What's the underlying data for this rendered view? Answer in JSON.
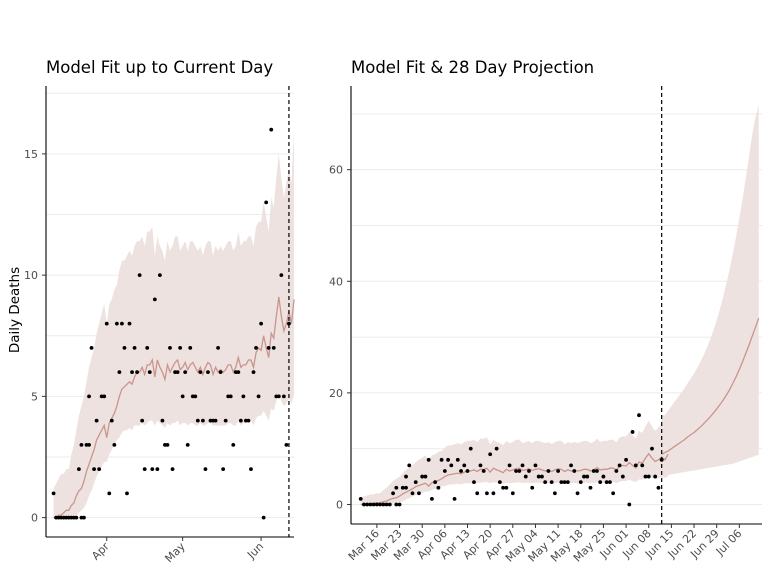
{
  "chart_data": [
    {
      "type": "line",
      "title": "Model Fit up to Current Day",
      "xlabel": "",
      "ylabel": "Daily Deaths",
      "x_tick_labels": [
        "Apr",
        "May",
        "Jun"
      ],
      "y_ticks": [
        0,
        5,
        10,
        15
      ],
      "xlim": [
        "2020-03-08",
        "2020-06-14"
      ],
      "ylim": [
        -0.8,
        17.8
      ],
      "current_day": "2020-06-12",
      "grid": "horizontal",
      "colors": {
        "points": "#000000",
        "band": "#ede2e0",
        "line": "#c9958c",
        "vline": "#000000"
      },
      "observed": [
        {
          "x": "2020-03-11",
          "y": 1
        },
        {
          "x": "2020-03-12",
          "y": 0
        },
        {
          "x": "2020-03-13",
          "y": 0
        },
        {
          "x": "2020-03-14",
          "y": 0
        },
        {
          "x": "2020-03-15",
          "y": 0
        },
        {
          "x": "2020-03-16",
          "y": 0
        },
        {
          "x": "2020-03-17",
          "y": 0
        },
        {
          "x": "2020-03-18",
          "y": 0
        },
        {
          "x": "2020-03-19",
          "y": 0
        },
        {
          "x": "2020-03-20",
          "y": 0
        },
        {
          "x": "2020-03-21",
          "y": 2
        },
        {
          "x": "2020-03-22",
          "y": 3
        },
        {
          "x": "2020-03-22",
          "y": 0
        },
        {
          "x": "2020-03-23",
          "y": 0
        },
        {
          "x": "2020-03-24",
          "y": 3
        },
        {
          "x": "2020-03-25",
          "y": 5
        },
        {
          "x": "2020-03-25",
          "y": 3
        },
        {
          "x": "2020-03-26",
          "y": 7
        },
        {
          "x": "2020-03-27",
          "y": 2
        },
        {
          "x": "2020-03-28",
          "y": 4
        },
        {
          "x": "2020-03-29",
          "y": 2
        },
        {
          "x": "2020-03-30",
          "y": 5
        },
        {
          "x": "2020-03-31",
          "y": 5
        },
        {
          "x": "2020-04-01",
          "y": 8
        },
        {
          "x": "2020-04-02",
          "y": 1
        },
        {
          "x": "2020-04-03",
          "y": 4
        },
        {
          "x": "2020-04-04",
          "y": 3
        },
        {
          "x": "2020-04-05",
          "y": 8
        },
        {
          "x": "2020-04-06",
          "y": 6
        },
        {
          "x": "2020-04-07",
          "y": 8
        },
        {
          "x": "2020-04-08",
          "y": 7
        },
        {
          "x": "2020-04-09",
          "y": 1
        },
        {
          "x": "2020-04-10",
          "y": 8
        },
        {
          "x": "2020-04-11",
          "y": 6
        },
        {
          "x": "2020-04-12",
          "y": 7
        },
        {
          "x": "2020-04-13",
          "y": 6
        },
        {
          "x": "2020-04-14",
          "y": 10
        },
        {
          "x": "2020-04-15",
          "y": 4
        },
        {
          "x": "2020-04-16",
          "y": 2
        },
        {
          "x": "2020-04-17",
          "y": 7
        },
        {
          "x": "2020-04-18",
          "y": 6
        },
        {
          "x": "2020-04-19",
          "y": 2
        },
        {
          "x": "2020-04-20",
          "y": 9
        },
        {
          "x": "2020-04-21",
          "y": 2
        },
        {
          "x": "2020-04-22",
          "y": 10
        },
        {
          "x": "2020-04-23",
          "y": 4
        },
        {
          "x": "2020-04-24",
          "y": 3
        },
        {
          "x": "2020-04-25",
          "y": 3
        },
        {
          "x": "2020-04-26",
          "y": 7
        },
        {
          "x": "2020-04-27",
          "y": 2
        },
        {
          "x": "2020-04-28",
          "y": 6
        },
        {
          "x": "2020-04-29",
          "y": 6
        },
        {
          "x": "2020-04-30",
          "y": 7
        },
        {
          "x": "2020-05-01",
          "y": 5
        },
        {
          "x": "2020-05-02",
          "y": 6
        },
        {
          "x": "2020-05-03",
          "y": 3
        },
        {
          "x": "2020-05-04",
          "y": 7
        },
        {
          "x": "2020-05-05",
          "y": 5
        },
        {
          "x": "2020-05-06",
          "y": 5
        },
        {
          "x": "2020-05-07",
          "y": 4
        },
        {
          "x": "2020-05-08",
          "y": 6
        },
        {
          "x": "2020-05-09",
          "y": 4
        },
        {
          "x": "2020-05-10",
          "y": 2
        },
        {
          "x": "2020-05-11",
          "y": 6
        },
        {
          "x": "2020-05-12",
          "y": 4
        },
        {
          "x": "2020-05-13",
          "y": 4
        },
        {
          "x": "2020-05-14",
          "y": 4
        },
        {
          "x": "2020-05-15",
          "y": 7
        },
        {
          "x": "2020-05-16",
          "y": 6
        },
        {
          "x": "2020-05-17",
          "y": 2
        },
        {
          "x": "2020-05-18",
          "y": 4
        },
        {
          "x": "2020-05-19",
          "y": 5
        },
        {
          "x": "2020-05-20",
          "y": 5
        },
        {
          "x": "2020-05-21",
          "y": 3
        },
        {
          "x": "2020-05-22",
          "y": 6
        },
        {
          "x": "2020-05-23",
          "y": 6
        },
        {
          "x": "2020-05-24",
          "y": 4
        },
        {
          "x": "2020-05-25",
          "y": 5
        },
        {
          "x": "2020-05-26",
          "y": 4
        },
        {
          "x": "2020-05-27",
          "y": 4
        },
        {
          "x": "2020-05-28",
          "y": 2
        },
        {
          "x": "2020-05-29",
          "y": 6
        },
        {
          "x": "2020-05-30",
          "y": 7
        },
        {
          "x": "2020-05-31",
          "y": 5
        },
        {
          "x": "2020-06-01",
          "y": 8
        },
        {
          "x": "2020-06-02",
          "y": 0
        },
        {
          "x": "2020-06-03",
          "y": 13
        },
        {
          "x": "2020-06-04",
          "y": 7
        },
        {
          "x": "2020-06-05",
          "y": 16
        },
        {
          "x": "2020-06-06",
          "y": 7
        },
        {
          "x": "2020-06-07",
          "y": 5
        },
        {
          "x": "2020-06-08",
          "y": 5
        },
        {
          "x": "2020-06-09",
          "y": 10
        },
        {
          "x": "2020-06-10",
          "y": 5
        },
        {
          "x": "2020-06-11",
          "y": 3
        },
        {
          "x": "2020-06-12",
          "y": 8
        }
      ],
      "fit": {
        "start": "2020-03-11",
        "median": [
          0,
          0,
          0.1,
          0.1,
          0.2,
          0.3,
          0.3,
          0.5,
          0.6,
          0.9,
          1.1,
          1.2,
          1.5,
          1.9,
          2.2,
          2.5,
          2.8,
          3.2,
          3.4,
          3.6,
          3.8,
          3.3,
          3.9,
          4.1,
          4.3,
          4.6,
          5.0,
          5.3,
          5.4,
          5.5,
          5.6,
          5.5,
          5.8,
          6.0,
          6.0,
          6.2,
          5.9,
          6.3,
          6.3,
          6.5,
          5.8,
          6.5,
          6.2,
          6.0,
          5.7,
          6.3,
          6.0,
          6.2,
          6.4,
          6.5,
          6.1,
          6.2,
          6.4,
          6.1,
          6.3,
          6.4,
          6.2,
          6.0,
          6.2,
          5.9,
          6.2,
          6.4,
          6.3,
          5.9,
          6.2,
          6.0,
          6.1,
          6.0,
          6.1,
          6.3,
          6.3,
          6.0,
          6.2,
          6.6,
          6.2,
          6.3,
          6.3,
          6.5,
          6.5,
          6.2,
          6.8,
          7.0,
          6.9,
          7.5,
          7.0,
          6.6,
          7.6,
          7.4,
          8.3,
          9.1,
          8.3,
          7.7,
          8.0,
          8.5,
          8.0,
          9.0
        ],
        "lower": [
          0,
          0,
          0,
          0,
          0,
          0,
          0,
          0,
          0,
          0.1,
          0.2,
          0.3,
          0.4,
          0.6,
          0.9,
          1.1,
          1.4,
          1.7,
          1.9,
          2.1,
          2.3,
          2.3,
          2.6,
          2.8,
          3.0,
          3.2,
          3.3,
          3.5,
          3.6,
          3.6,
          3.7,
          3.6,
          3.8,
          3.8,
          3.8,
          3.9,
          3.8,
          3.9,
          4.0,
          4.0,
          3.8,
          4.0,
          3.9,
          3.8,
          3.7,
          3.9,
          3.8,
          3.9,
          3.9,
          4.0,
          3.8,
          3.9,
          3.9,
          3.8,
          3.9,
          3.9,
          3.8,
          3.8,
          3.9,
          3.8,
          3.8,
          3.9,
          3.9,
          3.8,
          3.8,
          3.8,
          3.8,
          3.8,
          3.8,
          3.9,
          3.9,
          3.8,
          3.8,
          4.0,
          3.8,
          3.9,
          3.9,
          4.0,
          4.0,
          3.8,
          4.1,
          4.2,
          4.2,
          4.4,
          4.2,
          4.0,
          4.5,
          4.4,
          4.8,
          5.1,
          4.8,
          4.6,
          4.7,
          4.9,
          4.7,
          5.1
        ],
        "upper": [
          1.2,
          1.4,
          1.6,
          1.8,
          1.8,
          2.0,
          2.0,
          2.6,
          3.0,
          3.6,
          4.2,
          4.6,
          5.0,
          5.6,
          6.2,
          6.6,
          7.0,
          7.6,
          8.0,
          8.4,
          8.8,
          8.0,
          8.8,
          9.0,
          9.4,
          9.6,
          10.2,
          10.6,
          10.6,
          10.8,
          11.0,
          10.8,
          11.2,
          11.4,
          11.4,
          11.6,
          11.2,
          11.8,
          11.8,
          12.0,
          10.8,
          11.6,
          11.2,
          11.0,
          10.6,
          11.4,
          11.0,
          11.2,
          11.6,
          11.6,
          11.0,
          11.2,
          11.4,
          11.0,
          11.4,
          11.4,
          11.2,
          11.0,
          11.2,
          10.8,
          11.2,
          11.4,
          11.4,
          10.8,
          11.2,
          11.0,
          11.2,
          11.0,
          11.2,
          11.4,
          11.4,
          11.0,
          11.2,
          11.8,
          11.2,
          11.4,
          11.4,
          11.6,
          11.6,
          11.2,
          12.0,
          12.2,
          12.2,
          13.0,
          12.4,
          11.8,
          13.2,
          12.8,
          14.0,
          15.0,
          14.0,
          13.2,
          13.8,
          14.4,
          13.8,
          16.0
        ]
      }
    },
    {
      "type": "line",
      "title": "Model Fit & 28 Day Projection",
      "xlabel": "",
      "ylabel": "",
      "x_tick_labels": [
        "Mar 16",
        "Mar 23",
        "Mar 30",
        "Apr 06",
        "Apr 13",
        "Apr 20",
        "Apr 27",
        "May 04",
        "May 11",
        "May 18",
        "May 25",
        "Jun 01",
        "Jun 08",
        "Jun 15",
        "Jun 22",
        "Jun 29",
        "Jul 06"
      ],
      "y_ticks": [
        0,
        20,
        40,
        60
      ],
      "xlim": [
        "2020-03-08",
        "2020-07-13"
      ],
      "ylim": [
        -3.5,
        75
      ],
      "current_day": "2020-06-12",
      "grid": "horizontal",
      "projection": {
        "start": "2020-06-13",
        "median": [
          9.3,
          9.6,
          10.0,
          10.4,
          10.8,
          11.2,
          11.6,
          12.1,
          12.5,
          12.9,
          13.4,
          13.9,
          14.5,
          15.1,
          15.7,
          16.4,
          17.1,
          17.9,
          18.7,
          19.6,
          20.6,
          21.7,
          22.9,
          24.2,
          25.6,
          27.1,
          28.6,
          30.2,
          31.8,
          33.4
        ],
        "lower": [
          5.1,
          5.3,
          5.4,
          5.5,
          5.6,
          5.7,
          5.8,
          5.9,
          6.0,
          6.1,
          6.2,
          6.3,
          6.4,
          6.5,
          6.6,
          6.7,
          6.8,
          6.9,
          7.0,
          7.1,
          7.2,
          7.3,
          7.5,
          7.7,
          7.9,
          8.1,
          8.3,
          8.5,
          8.7,
          8.9
        ],
        "upper": [
          16.0,
          16.8,
          17.6,
          18.4,
          19.2,
          20.0,
          20.8,
          21.7,
          22.6,
          23.5,
          24.5,
          25.6,
          26.8,
          28.1,
          29.6,
          31.2,
          33.0,
          35.0,
          37.2,
          39.6,
          42.2,
          45.0,
          48.0,
          51.3,
          54.8,
          58.5,
          62.4,
          66.3,
          69.5,
          71.5
        ]
      }
    }
  ]
}
